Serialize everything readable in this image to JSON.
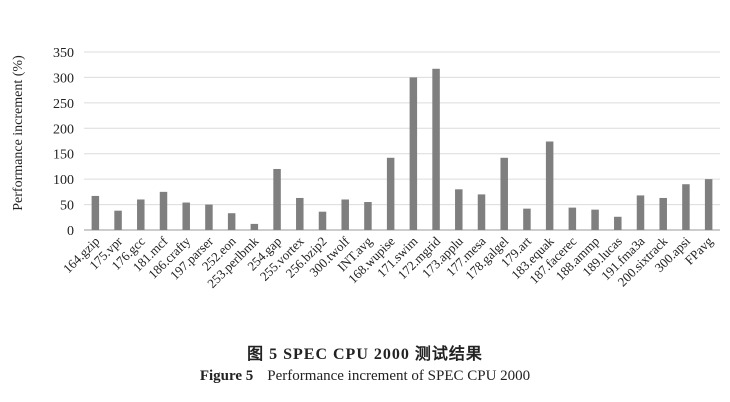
{
  "chart_data": {
    "type": "bar",
    "title": "",
    "xlabel": "",
    "ylabel": "Performance increment (%)",
    "ylim": [
      0,
      350
    ],
    "yticks": [
      "0",
      "50",
      "100",
      "150",
      "200",
      "250",
      "300",
      "350"
    ],
    "grid": true,
    "bar_color": "#7f7f7f",
    "categories": [
      "164.gzip",
      "175.vpr",
      "176.gcc",
      "181.mcf",
      "186.crafty",
      "197.parser",
      "252.eon",
      "253.perlbmk",
      "254.gap",
      "255.vortex",
      "256.bzip2",
      "300.twolf",
      "INT.avg",
      "168.wupise",
      "171.swim",
      "172.mgrid",
      "173.applu",
      "177.mesa",
      "178.galgel",
      "179.art",
      "183.equak",
      "187.facerec",
      "188.ammp",
      "189.lucas",
      "191.fma3a",
      "200.sixtrack",
      "300.apsi",
      "FPavg"
    ],
    "values": [
      67,
      38,
      60,
      75,
      54,
      50,
      33,
      12,
      120,
      63,
      36,
      60,
      55,
      142,
      300,
      317,
      80,
      70,
      142,
      42,
      174,
      44,
      40,
      26,
      68,
      63,
      90,
      100
    ]
  },
  "caption": {
    "zh": "图 5   SPEC CPU 2000 测试结果",
    "en_label": "Figure 5",
    "en_text": "Performance increment of SPEC CPU 2000"
  }
}
